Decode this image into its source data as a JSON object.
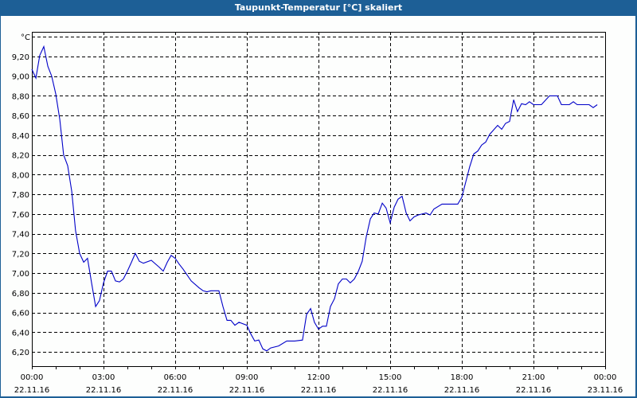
{
  "window": {
    "title": "Taupunkt-Temperatur [°C] skaliert"
  },
  "colors": {
    "titlebar": "#1d5f96",
    "background": "#fdfefd",
    "line": "#0000c8",
    "grid": "#000000"
  },
  "chart_data": {
    "type": "line",
    "title": "Taupunkt-Temperatur [°C] skaliert",
    "xlabel": "",
    "ylabel": "°C",
    "ylim": [
      6.05,
      9.45
    ],
    "xlim_hours": [
      0,
      24
    ],
    "grid": true,
    "legend": null,
    "y_ticks": [
      "6,20",
      "6,40",
      "6,60",
      "6,80",
      "7,00",
      "7,20",
      "7,40",
      "7,60",
      "7,80",
      "8,00",
      "8,20",
      "8,40",
      "8,60",
      "8,80",
      "9,00",
      "9,20"
    ],
    "y_tick_values": [
      6.2,
      6.4,
      6.6,
      6.8,
      7.0,
      7.2,
      7.4,
      7.6,
      7.8,
      8.0,
      8.2,
      8.4,
      8.6,
      8.8,
      9.0,
      9.2
    ],
    "y_unit_label": "°C",
    "x_ticks": [
      {
        "time": "00:00",
        "date": "22.11.16",
        "hour": 0
      },
      {
        "time": "03:00",
        "date": "22.11.16",
        "hour": 3
      },
      {
        "time": "06:00",
        "date": "22.11.16",
        "hour": 6
      },
      {
        "time": "09:00",
        "date": "22.11.16",
        "hour": 9
      },
      {
        "time": "12:00",
        "date": "22.11.16",
        "hour": 12
      },
      {
        "time": "15:00",
        "date": "22.11.16",
        "hour": 15
      },
      {
        "time": "18:00",
        "date": "22.11.16",
        "hour": 18
      },
      {
        "time": "21:00",
        "date": "22.11.16",
        "hour": 21
      },
      {
        "time": "00:00",
        "date": "23.11.16",
        "hour": 24
      }
    ],
    "series": [
      {
        "name": "Taupunkt-Temperatur",
        "x_hours": [
          0,
          0.17,
          0.33,
          0.5,
          0.67,
          0.83,
          1.0,
          1.17,
          1.33,
          1.5,
          1.67,
          1.83,
          2.0,
          2.17,
          2.33,
          2.5,
          2.67,
          2.83,
          3.0,
          3.17,
          3.33,
          3.5,
          3.67,
          3.83,
          4.0,
          4.17,
          4.33,
          4.5,
          4.67,
          5.0,
          5.33,
          5.5,
          5.67,
          5.83,
          6.0,
          6.17,
          6.33,
          6.67,
          7.0,
          7.17,
          7.33,
          7.5,
          7.83,
          8.0,
          8.17,
          8.33,
          8.5,
          8.67,
          9.0,
          9.17,
          9.33,
          9.5,
          9.67,
          9.83,
          10.0,
          10.33,
          10.67,
          11.0,
          11.33,
          11.5,
          11.67,
          11.83,
          12.0,
          12.17,
          12.33,
          12.5,
          12.67,
          12.83,
          13.0,
          13.17,
          13.33,
          13.5,
          13.67,
          13.83,
          14.0,
          14.17,
          14.33,
          14.5,
          14.67,
          14.83,
          15.0,
          15.17,
          15.33,
          15.5,
          15.67,
          15.83,
          16.0,
          16.17,
          16.5,
          16.67,
          16.83,
          17.17,
          17.83,
          18.0,
          18.17,
          18.33,
          18.5,
          18.67,
          18.83,
          19.0,
          19.17,
          19.5,
          19.67,
          19.83,
          20.0,
          20.17,
          20.33,
          20.5,
          20.67,
          20.83,
          21.0,
          21.33,
          21.67,
          22.0,
          22.17,
          22.5,
          22.67,
          22.83,
          23.33,
          23.5,
          23.67
        ],
        "values": [
          9.07,
          8.98,
          9.21,
          9.3,
          9.1,
          9.0,
          8.82,
          8.56,
          8.2,
          8.09,
          7.83,
          7.43,
          7.2,
          7.11,
          7.15,
          6.9,
          6.66,
          6.72,
          6.9,
          7.02,
          7.02,
          6.92,
          6.91,
          6.94,
          7.02,
          7.11,
          7.2,
          7.12,
          7.1,
          7.13,
          7.06,
          7.02,
          7.11,
          7.18,
          7.15,
          7.09,
          7.04,
          6.92,
          6.85,
          6.82,
          6.81,
          6.82,
          6.82,
          6.66,
          6.52,
          6.52,
          6.47,
          6.5,
          6.47,
          6.38,
          6.31,
          6.32,
          6.23,
          6.21,
          6.24,
          6.26,
          6.31,
          6.31,
          6.32,
          6.58,
          6.64,
          6.5,
          6.43,
          6.46,
          6.46,
          6.66,
          6.74,
          6.89,
          6.94,
          6.94,
          6.9,
          6.94,
          7.02,
          7.12,
          7.37,
          7.55,
          7.61,
          7.6,
          7.71,
          7.66,
          7.51,
          7.67,
          7.75,
          7.78,
          7.61,
          7.53,
          7.57,
          7.59,
          7.61,
          7.59,
          7.65,
          7.7,
          7.7,
          7.77,
          7.93,
          8.08,
          8.21,
          8.24,
          8.3,
          8.33,
          8.41,
          8.5,
          8.46,
          8.52,
          8.54,
          8.76,
          8.64,
          8.72,
          8.71,
          8.74,
          8.71,
          8.71,
          8.8,
          8.8,
          8.71,
          8.71,
          8.74,
          8.71,
          8.71,
          8.68,
          8.71
        ]
      }
    ]
  }
}
